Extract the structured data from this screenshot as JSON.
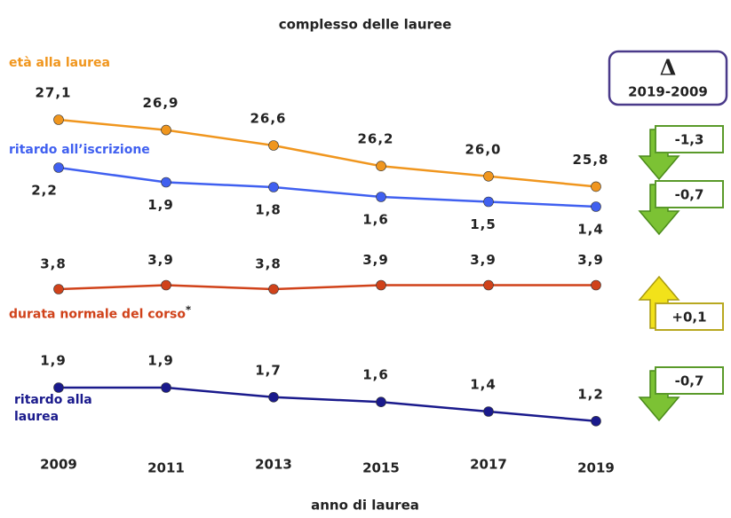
{
  "chart_data": {
    "type": "line",
    "title": "complesso delle lauree",
    "xlabel": "anno di laurea",
    "categories": [
      "2009",
      "2011",
      "2013",
      "2015",
      "2017",
      "2019"
    ],
    "delta_header": {
      "symbol": "Δ",
      "label": "2019-2009"
    },
    "series": [
      {
        "name": "età alla laurea",
        "color": "#f0961e",
        "values": [
          27.1,
          26.9,
          26.6,
          26.2,
          26.0,
          25.8
        ],
        "value_labels": [
          "27,1",
          "26,9",
          "26,6",
          "26,2",
          "26,0",
          "25,8"
        ],
        "delta": -1.3,
        "delta_label": "-1,3"
      },
      {
        "name": "ritardo all’iscrizione",
        "color": "#4060f0",
        "values": [
          2.2,
          1.9,
          1.8,
          1.6,
          1.5,
          1.4
        ],
        "value_labels": [
          "2,2",
          "1,9",
          "1,8",
          "1,6",
          "1,5",
          "1,4"
        ],
        "delta": -0.7,
        "delta_label": "-0,7"
      },
      {
        "name": "durata normale del corso",
        "note": "*",
        "color": "#d0421a",
        "values": [
          3.8,
          3.9,
          3.8,
          3.9,
          3.9,
          3.9
        ],
        "value_labels": [
          "3,8",
          "3,9",
          "3,8",
          "3,9",
          "3,9",
          "3,9"
        ],
        "delta": 0.1,
        "delta_label": "+0,1"
      },
      {
        "name": "ritardo alla laurea",
        "color": "#1a1a8c",
        "values": [
          1.9,
          1.9,
          1.7,
          1.6,
          1.4,
          1.2
        ],
        "value_labels": [
          "1,9",
          "1,9",
          "1,7",
          "1,6",
          "1,4",
          "1,2"
        ],
        "delta": -0.7,
        "delta_label": "-0,7"
      }
    ]
  }
}
